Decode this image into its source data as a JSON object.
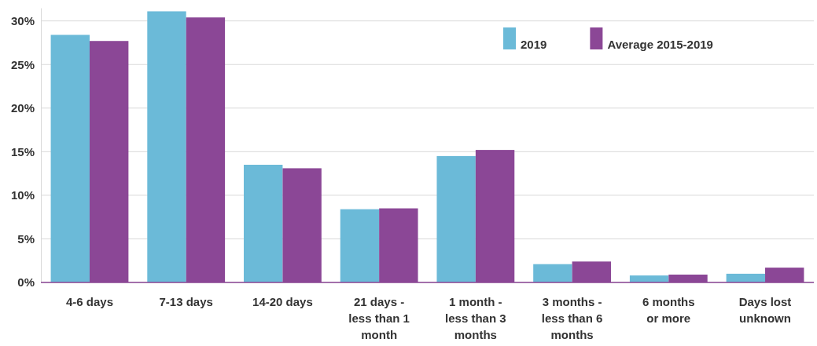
{
  "chart_data": {
    "type": "bar",
    "categories": [
      "4-6 days",
      "7-13 days",
      "14-20 days",
      "21 days - less than 1 month",
      "1 month - less than 3 months",
      "3 months - less than 6 months",
      "6 months or more",
      "Days lost unknown"
    ],
    "series": [
      {
        "name": "2019",
        "color": "#6bbad8",
        "values": [
          28.4,
          31.1,
          13.5,
          8.4,
          14.5,
          2.1,
          0.8,
          1.0
        ]
      },
      {
        "name": "Average 2015-2019",
        "color": "#8b4796",
        "values": [
          27.7,
          30.4,
          13.1,
          8.5,
          15.2,
          2.4,
          0.9,
          1.7
        ]
      }
    ],
    "ylim": [
      0,
      31.5
    ],
    "yticks": [
      {
        "value": 0,
        "label": "0%"
      },
      {
        "value": 5,
        "label": "5%"
      },
      {
        "value": 10,
        "label": "10%"
      },
      {
        "value": 15,
        "label": "15%"
      },
      {
        "value": 20,
        "label": "20%"
      },
      {
        "value": 25,
        "label": "25%"
      },
      {
        "value": 30,
        "label": "30%"
      }
    ],
    "grid": "y",
    "legend": "top right"
  }
}
